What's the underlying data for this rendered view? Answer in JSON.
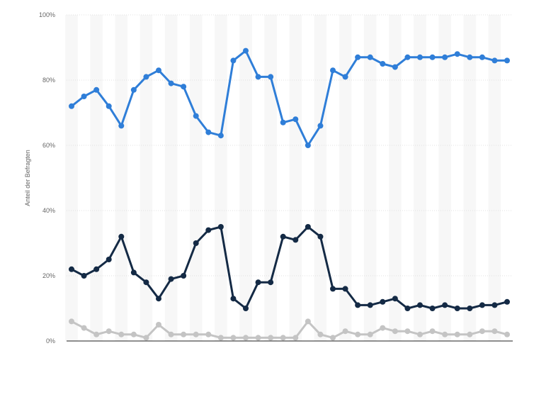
{
  "chart_data": {
    "type": "line",
    "title": "",
    "xlabel": "",
    "ylabel": "Anteil der Befragten",
    "ylim": [
      0,
      100
    ],
    "y_ticks": [
      "0%",
      "20%",
      "40%",
      "60%",
      "80%",
      "100%"
    ],
    "y_tick_values": [
      0,
      20,
      40,
      60,
      80,
      100
    ],
    "grid": true,
    "legend": "none",
    "x": [
      1,
      2,
      3,
      4,
      5,
      6,
      7,
      8,
      9,
      10,
      11,
      12,
      13,
      14,
      15,
      16,
      17,
      18,
      19,
      20,
      21,
      22,
      23,
      24,
      25,
      26,
      27,
      28,
      29,
      30,
      31,
      32,
      33,
      34,
      35,
      36
    ],
    "series": [
      {
        "color": "#2f7ed8",
        "values": [
          72,
          75,
          77,
          72,
          66,
          77,
          81,
          83,
          79,
          78,
          69,
          64,
          63,
          86,
          89,
          81,
          81,
          67,
          68,
          60,
          66,
          83,
          81,
          87,
          87,
          85,
          84,
          87,
          87,
          87,
          87,
          88,
          87,
          87,
          86,
          86
        ]
      },
      {
        "color": "#142a45",
        "values": [
          22,
          20,
          22,
          25,
          32,
          21,
          18,
          13,
          19,
          20,
          30,
          34,
          35,
          13,
          10,
          18,
          18,
          32,
          31,
          35,
          32,
          16,
          16,
          11,
          11,
          12,
          13,
          10,
          11,
          10,
          11,
          10,
          10,
          11,
          11,
          12
        ]
      },
      {
        "color": "#c4c4c4",
        "values": [
          6,
          4,
          2,
          3,
          2,
          2,
          1,
          5,
          2,
          2,
          2,
          2,
          1,
          1,
          1,
          1,
          1,
          1,
          1,
          6,
          2,
          1,
          3,
          2,
          2,
          4,
          3,
          3,
          2,
          3,
          2,
          2,
          2,
          3,
          3,
          2
        ]
      }
    ]
  }
}
